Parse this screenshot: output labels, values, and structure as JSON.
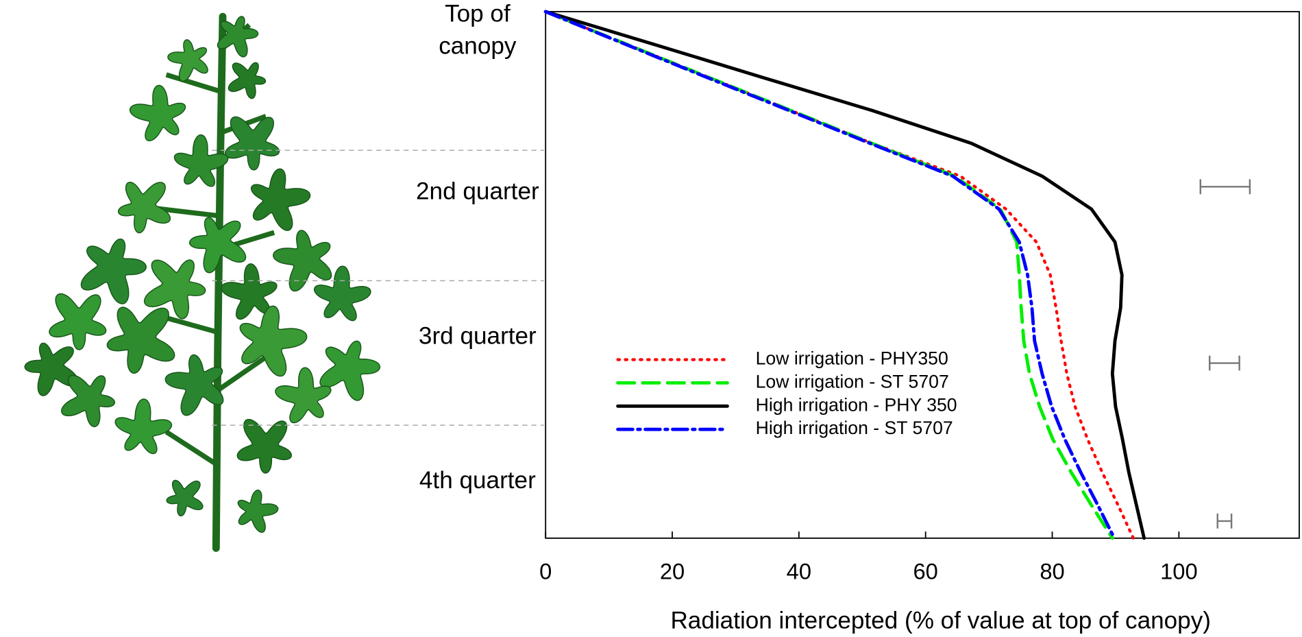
{
  "chart_data": {
    "type": "line",
    "xlabel": "Radiation intercepted (% of value at top of canopy)",
    "xlim": [
      0,
      119
    ],
    "xticks": [
      0,
      20,
      40,
      60,
      80,
      100
    ],
    "ylim": [
      4,
      0
    ],
    "yticks": [
      {
        "value": 0,
        "label": "Top of canopy"
      },
      {
        "value": 1.5,
        "label": "2nd quarter"
      },
      {
        "value": 2.6,
        "label": "3rd quarter"
      },
      {
        "value": 3.7,
        "label": "4th quarter"
      }
    ],
    "y": [
      0,
      0.25,
      0.5,
      0.75,
      1,
      1.25,
      1.5,
      1.75,
      2,
      2.25,
      2.5,
      2.75,
      3,
      3.25,
      3.5,
      3.75,
      4
    ],
    "series": [
      {
        "name": "Low irrigation - PHY350",
        "color": "#ff0000",
        "dash": "dotted",
        "values": [
          0,
          12.9,
          25.8,
          38.7,
          51.5,
          65.5,
          72.7,
          77.5,
          79.7,
          80.6,
          81.4,
          82.3,
          83.6,
          85.6,
          87.9,
          90.4,
          92.8
        ]
      },
      {
        "name": "Low irrigation - ST 5707",
        "color": "#00ee00",
        "dash": "dashed",
        "values": [
          0,
          12.9,
          25.8,
          38.7,
          51.5,
          64.6,
          71.8,
          74.4,
          74.8,
          75.1,
          75.5,
          76.4,
          78,
          80.1,
          83,
          86.2,
          89.5
        ]
      },
      {
        "name": "High irrigation - PHY 350",
        "color": "#000000",
        "dash": "solid",
        "values": [
          0,
          17.2,
          34.3,
          51.5,
          67.2,
          78.4,
          86.2,
          89.9,
          91,
          90.8,
          89.9,
          89.5,
          90,
          91.1,
          92.1,
          93.3,
          94.5
        ]
      },
      {
        "name": "High irrigation - ST 5707",
        "color": "#0000ff",
        "dash": "dashdot",
        "values": [
          0,
          12.7,
          25.5,
          38.4,
          51.2,
          64.3,
          71.6,
          74.8,
          76.1,
          76.8,
          77.2,
          78.4,
          79.9,
          82,
          84.5,
          87.2,
          89.8
        ]
      }
    ],
    "error_bars": [
      {
        "y": 1.33,
        "value": 107.3,
        "error": 3.9
      },
      {
        "y": 2.67,
        "value": 107.2,
        "error": 2.35
      },
      {
        "y": 3.87,
        "value": 107.2,
        "error": 1.1
      }
    ]
  }
}
